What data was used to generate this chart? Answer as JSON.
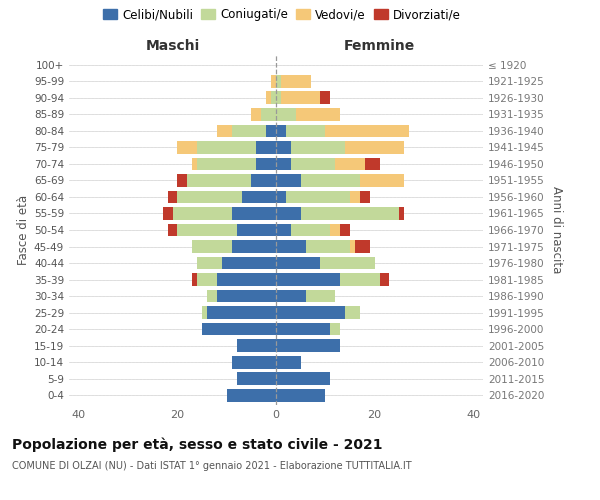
{
  "age_groups": [
    "0-4",
    "5-9",
    "10-14",
    "15-19",
    "20-24",
    "25-29",
    "30-34",
    "35-39",
    "40-44",
    "45-49",
    "50-54",
    "55-59",
    "60-64",
    "65-69",
    "70-74",
    "75-79",
    "80-84",
    "85-89",
    "90-94",
    "95-99",
    "100+"
  ],
  "birth_years": [
    "2016-2020",
    "2011-2015",
    "2006-2010",
    "2001-2005",
    "1996-2000",
    "1991-1995",
    "1986-1990",
    "1981-1985",
    "1976-1980",
    "1971-1975",
    "1966-1970",
    "1961-1965",
    "1956-1960",
    "1951-1955",
    "1946-1950",
    "1941-1945",
    "1936-1940",
    "1931-1935",
    "1926-1930",
    "1921-1925",
    "≤ 1920"
  ],
  "male_celibi": [
    10,
    8,
    9,
    8,
    15,
    14,
    12,
    12,
    11,
    9,
    8,
    9,
    7,
    5,
    4,
    4,
    2,
    0,
    0,
    0,
    0
  ],
  "male_coniugati": [
    0,
    0,
    0,
    0,
    0,
    1,
    2,
    4,
    5,
    8,
    12,
    12,
    13,
    13,
    12,
    12,
    7,
    3,
    1,
    0,
    0
  ],
  "male_vedovi": [
    0,
    0,
    0,
    0,
    0,
    0,
    0,
    0,
    0,
    0,
    0,
    0,
    0,
    0,
    1,
    4,
    3,
    2,
    1,
    1,
    0
  ],
  "male_divorziati": [
    0,
    0,
    0,
    0,
    0,
    0,
    0,
    1,
    0,
    0,
    2,
    2,
    2,
    2,
    0,
    0,
    0,
    0,
    0,
    0,
    0
  ],
  "female_nubili": [
    10,
    11,
    5,
    13,
    11,
    14,
    6,
    13,
    9,
    6,
    3,
    5,
    2,
    5,
    3,
    3,
    2,
    0,
    0,
    0,
    0
  ],
  "female_coniugate": [
    0,
    0,
    0,
    0,
    2,
    3,
    6,
    8,
    11,
    9,
    8,
    20,
    13,
    12,
    9,
    11,
    8,
    4,
    1,
    1,
    0
  ],
  "female_vedove": [
    0,
    0,
    0,
    0,
    0,
    0,
    0,
    0,
    0,
    1,
    2,
    0,
    2,
    9,
    6,
    12,
    17,
    9,
    8,
    6,
    0
  ],
  "female_divorziate": [
    0,
    0,
    0,
    0,
    0,
    0,
    0,
    2,
    0,
    3,
    2,
    1,
    2,
    0,
    3,
    0,
    0,
    0,
    2,
    0,
    0
  ],
  "color_celibi": "#3d6faa",
  "color_coniugati": "#c2d99a",
  "color_vedovi": "#f5c878",
  "color_divorziati": "#c0392b",
  "xlim": 42,
  "title": "Popolazione per età, sesso e stato civile - 2021",
  "subtitle": "COMUNE DI OLZAI (NU) - Dati ISTAT 1° gennaio 2021 - Elaborazione TUTTITALIA.IT",
  "label_maschi": "Maschi",
  "label_femmine": "Femmine",
  "label_fasce": "Fasce di età",
  "label_anni": "Anni di nascita",
  "legend": [
    "Celibi/Nubili",
    "Coniugati/e",
    "Vedovi/e",
    "Divorziati/e"
  ],
  "bg_color": "#ffffff"
}
